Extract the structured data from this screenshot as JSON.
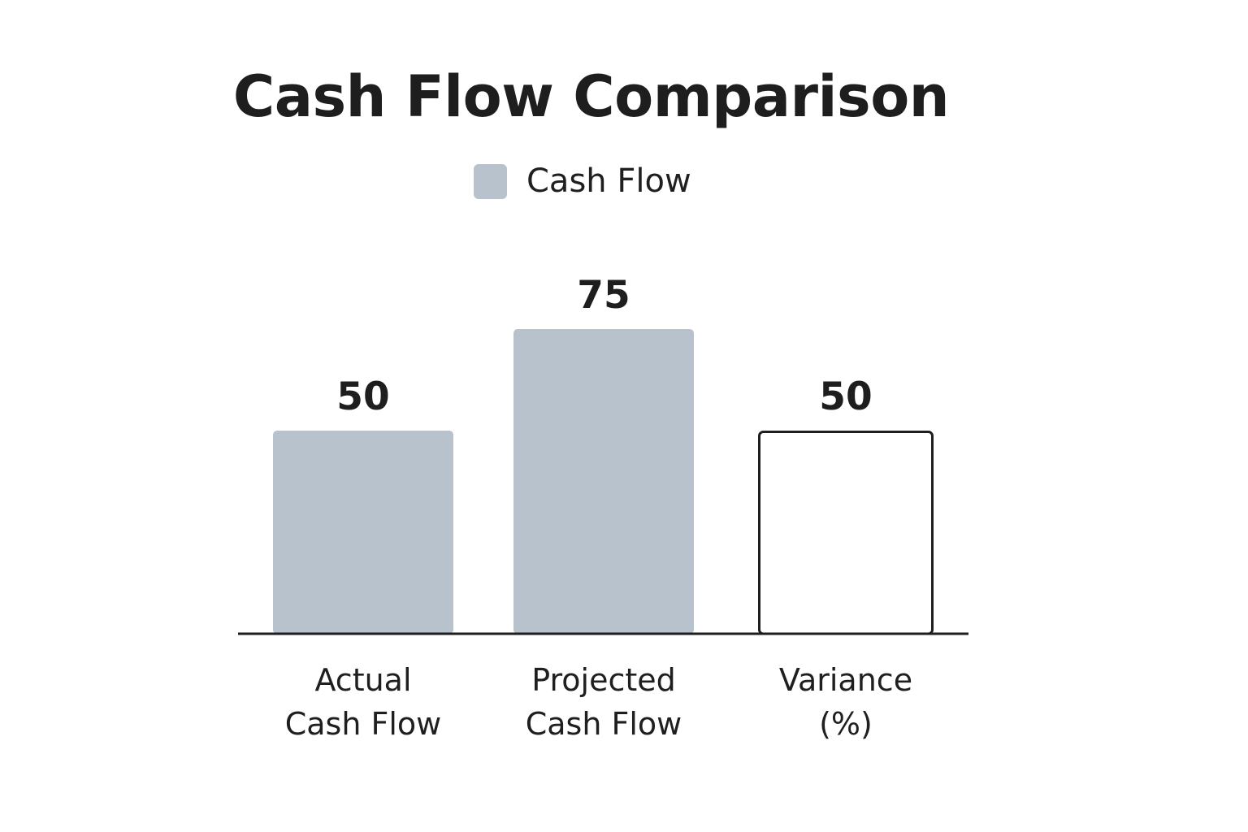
{
  "chart_data": {
    "type": "bar",
    "title": "Cash Flow Comparison",
    "legend": [
      {
        "label": "Cash Flow",
        "color": "#b8c2cd"
      }
    ],
    "legend_position": "top-center",
    "categories": [
      [
        "Actual",
        "Cash Flow"
      ],
      [
        "Projected",
        "Cash Flow"
      ],
      [
        "Variance",
        "(%)"
      ]
    ],
    "series": [
      {
        "name": "Cash Flow",
        "values": [
          50,
          75,
          50
        ],
        "data_labels": [
          "50",
          "75",
          "50"
        ],
        "styles": [
          "filled",
          "filled",
          "outline"
        ]
      }
    ],
    "xlabel": "",
    "ylabel": "",
    "ylim": [
      0,
      112
    ],
    "grid": false,
    "axis_color": "#1e1e1e",
    "fill_color": "#b8c2cd",
    "outline_color": "#1e1e1e"
  }
}
